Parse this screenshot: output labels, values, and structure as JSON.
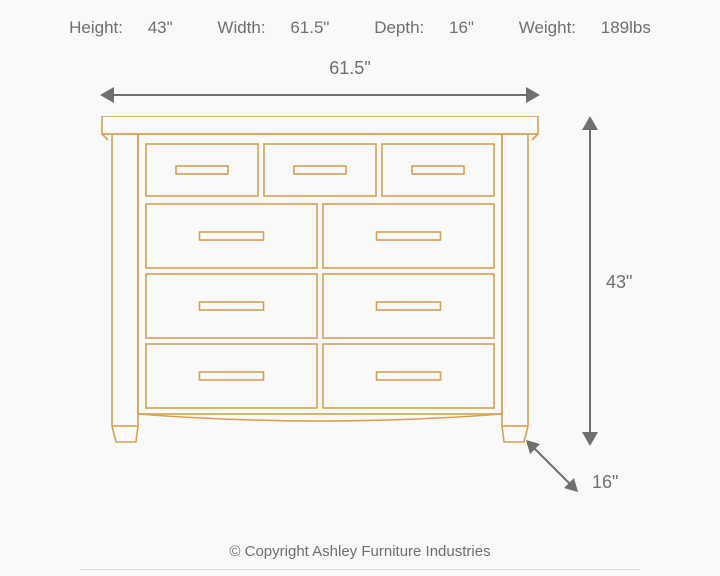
{
  "specs": {
    "height_label": "Height:",
    "height_value": "43\"",
    "width_label": "Width:",
    "width_value": "61.5\"",
    "depth_label": "Depth:",
    "depth_value": "16\"",
    "weight_label": "Weight:",
    "weight_value": "189lbs"
  },
  "dimensions": {
    "width_text": "61.5\"",
    "height_text": "43\"",
    "depth_text": "16\""
  },
  "drawing": {
    "type": "infographic",
    "line_color": "#d3a253",
    "arrow_color": "#6f6f6f",
    "background_color": "#f9f9f9",
    "text_color": "#6f6f6f",
    "line_width": 1.6,
    "label_fontsize": 18,
    "spec_fontsize": 17,
    "top_row_drawers": 3,
    "bottom_cols": 2,
    "bottom_rows": 3
  },
  "copyright": "© Copyright Ashley Furniture Industries"
}
